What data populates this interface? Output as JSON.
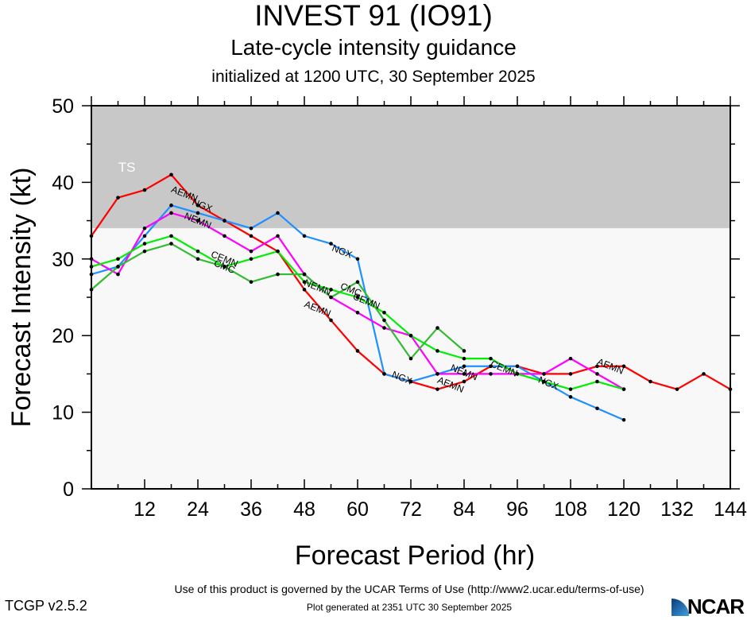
{
  "header": {
    "title": "INVEST 91 (IO91)",
    "subtitle": "Late-cycle intensity guidance",
    "init": "initialized at 1200 UTC, 30 September 2025"
  },
  "footer": {
    "terms": "Use of this product is governed by the UCAR Terms of Use (http://www2.ucar.edu/terms-of-use)",
    "generated": "Plot generated at 2351 UTC   30 September 2025",
    "version": "TCGP v2.5.2",
    "logo": "NCAR"
  },
  "chart_data": {
    "type": "line",
    "title": "INVEST 91 (IO91)",
    "subtitle": "Late-cycle intensity guidance",
    "xlabel": "Forecast Period (hr)",
    "ylabel": "Forecast Intensity (kt)",
    "xlim": [
      0,
      144
    ],
    "ylim": [
      0,
      50
    ],
    "xticks": [
      12,
      24,
      36,
      48,
      60,
      72,
      84,
      96,
      108,
      120,
      132,
      144
    ],
    "yticks": [
      0,
      10,
      20,
      30,
      40,
      50
    ],
    "bands": [
      {
        "label": "TS",
        "from": 34,
        "to": 50,
        "color": "#c8c8c8"
      },
      {
        "label": "",
        "from": 0,
        "to": 34,
        "color": "#f8f8f8"
      }
    ],
    "series": [
      {
        "name": "AEMN",
        "color": "#ff0000",
        "x": [
          0,
          6,
          12,
          18,
          24,
          30,
          36,
          42,
          48,
          54,
          60,
          66,
          72,
          78,
          84,
          90,
          96,
          102,
          108,
          114,
          120,
          126,
          132,
          138,
          144
        ],
        "y": [
          33,
          38,
          39,
          41,
          37,
          35,
          33,
          31,
          26,
          22,
          18,
          15,
          14,
          13,
          14,
          16,
          16,
          15,
          15,
          16,
          16,
          14,
          13,
          15,
          13
        ]
      },
      {
        "name": "NGX",
        "color": "#1e90ff",
        "x": [
          0,
          6,
          12,
          18,
          24,
          30,
          36,
          42,
          48,
          54,
          60,
          66,
          72,
          78,
          84,
          90,
          96,
          102,
          108,
          114,
          120
        ],
        "y": [
          28,
          29,
          33,
          37,
          36,
          35,
          34,
          36,
          33,
          32,
          30,
          15,
          14,
          15,
          16,
          16,
          16,
          14,
          12,
          10.5,
          9
        ]
      },
      {
        "name": "NEMN",
        "color": "#ff00ff",
        "x": [
          0,
          6,
          12,
          18,
          24,
          30,
          36,
          42,
          48,
          54,
          60,
          66,
          72,
          78,
          84,
          90,
          96,
          102,
          108,
          114,
          120
        ],
        "y": [
          30,
          28,
          34,
          36,
          35,
          33,
          31,
          33,
          28,
          25,
          23,
          21,
          20,
          15,
          15,
          15,
          15,
          15,
          17,
          15,
          13
        ]
      },
      {
        "name": "CEMN",
        "color": "#00ee00",
        "x": [
          0,
          6,
          12,
          18,
          24,
          30,
          36,
          42,
          48,
          54,
          60,
          66,
          72,
          78,
          84,
          90,
          96,
          102,
          108,
          114,
          120
        ],
        "y": [
          29,
          30,
          32,
          33,
          31,
          29,
          30,
          31,
          27,
          26,
          25,
          23,
          20,
          18,
          17,
          17,
          15,
          14,
          13,
          14,
          13
        ]
      },
      {
        "name": "CMC",
        "color": "#33bb33",
        "x": [
          0,
          6,
          12,
          18,
          24,
          30,
          36,
          42,
          48,
          54,
          60,
          66,
          72,
          78,
          84
        ],
        "y": [
          26,
          29,
          31,
          32,
          30,
          29,
          27,
          28,
          28,
          25,
          27,
          22,
          17,
          21,
          18
        ]
      }
    ],
    "labels": [
      {
        "text": "TS",
        "x": 8,
        "y": 42,
        "color": "#ffffff"
      },
      {
        "text": "AEMN",
        "series": "AEMN",
        "x": 21,
        "y": 38.5
      },
      {
        "text": "NGX",
        "series": "NGX",
        "x": 25,
        "y": 37
      },
      {
        "text": "NEMN",
        "series": "NEMN",
        "x": 24,
        "y": 35
      },
      {
        "text": "CEMN",
        "series": "CEMN",
        "x": 30,
        "y": 30
      },
      {
        "text": "CMC",
        "series": "CMC",
        "x": 30,
        "y": 29
      },
      {
        "text": "NGX",
        "series": "NGX",
        "x": 56.5,
        "y": 31
      },
      {
        "text": "NEMN",
        "series": "NEMN",
        "x": 51,
        "y": 26.3
      },
      {
        "text": "CMC",
        "series": "CMC",
        "x": 58.5,
        "y": 26
      },
      {
        "text": "CEMN",
        "series": "CEMN",
        "x": 62,
        "y": 24.5
      },
      {
        "text": "AEMN",
        "series": "AEMN",
        "x": 51,
        "y": 23.5
      },
      {
        "text": "NGX",
        "series": "NGX",
        "x": 70,
        "y": 14.5
      },
      {
        "text": "NEMN",
        "series": "NEMN",
        "x": 84,
        "y": 15.2
      },
      {
        "text": "AEMN",
        "series": "AEMN",
        "x": 81,
        "y": 13.6
      },
      {
        "text": "CEMN",
        "series": "CEMN",
        "x": 93,
        "y": 15.7
      },
      {
        "text": "NGX",
        "series": "NGX",
        "x": 103,
        "y": 13.8
      },
      {
        "text": "AEMN",
        "series": "AEMN",
        "x": 117,
        "y": 16
      }
    ],
    "grid": false,
    "legend": "none"
  }
}
